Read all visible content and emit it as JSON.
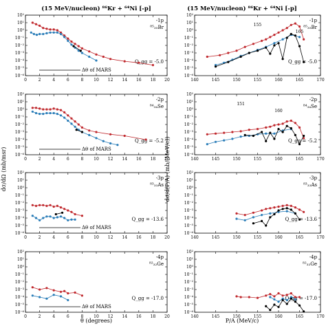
{
  "titles": {
    "left": "(15 MeV/nucleon) ⁸⁶Kr + ⁶⁴Ni [-p]",
    "right": "(15 MeV/nucleon) ⁸⁶Kr + ⁶⁴Ni [-p]"
  },
  "axis_labels": {
    "left_y": "dσ/dΩ (mb/msr)",
    "left_x": "θ (degrees)",
    "right_y": "dσ/d(P/A) (mb/(MeV/c))",
    "right_x": "P/A (MeV/c)"
  },
  "ytick_labels": [
    "10²",
    "10¹",
    "10⁰",
    "10⁻¹",
    "10⁻²",
    "10⁻³",
    "10⁻⁴",
    "10⁻⁵",
    "10⁻⁶"
  ],
  "colors": {
    "red": "#c0282d",
    "blue": "#2a7db8",
    "black": "#000000"
  },
  "chart_data": [
    {
      "type": "scatter",
      "panel": "left-1",
      "xlim": [
        0,
        20
      ],
      "ylim_log10": [
        -6,
        2
      ],
      "yscale": "log",
      "x_ticks": [
        0,
        2,
        4,
        6,
        8,
        10,
        12,
        14,
        16,
        18,
        20
      ],
      "channel": "-1p",
      "nucleus": "⁸⁵₃₅Br",
      "q_gg": "Q_gg = -5.0",
      "mars_label": "Δθ of MARS",
      "series": [
        {
          "color": "red",
          "x": [
            1,
            1.5,
            2,
            2.5,
            3,
            3.5,
            4,
            4.5,
            5,
            5.5,
            6,
            6.5,
            7,
            7.5,
            8,
            9,
            10,
            11,
            12,
            14,
            16,
            18
          ],
          "log10y": [
            1.0,
            0.8,
            0.6,
            0.3,
            0.2,
            0.1,
            0.1,
            0.0,
            -0.3,
            -0.7,
            -1.1,
            -1.5,
            -1.8,
            -2.1,
            -2.4,
            -2.8,
            -3.2,
            -3.5,
            -3.8,
            -4.1,
            -4.3,
            -4.6
          ]
        },
        {
          "color": "blue",
          "x": [
            0.8,
            1.2,
            1.6,
            2,
            2.5,
            3,
            3.5,
            4,
            4.5,
            5,
            5.5,
            6,
            6.5,
            7,
            7.5,
            8,
            9,
            10
          ],
          "log10y": [
            -0.3,
            -0.5,
            -0.6,
            -0.5,
            -0.5,
            -0.4,
            -0.3,
            -0.3,
            -0.3,
            -0.5,
            -0.9,
            -1.4,
            -1.9,
            -2.3,
            -2.7,
            -3.0,
            -3.5,
            -4.0
          ]
        },
        {
          "color": "black",
          "x": [
            6.8,
            7.8
          ],
          "log10y": [
            -2.1,
            -2.7
          ]
        }
      ]
    },
    {
      "type": "scatter",
      "panel": "left-2",
      "xlim": [
        0,
        20
      ],
      "ylim_log10": [
        -6,
        2
      ],
      "yscale": "log",
      "x_ticks": [
        0,
        2,
        4,
        6,
        8,
        10,
        12,
        14,
        16,
        18,
        20
      ],
      "channel": "-2p",
      "nucleus": "⁸⁴₃₄Se",
      "q_gg": "Q_gg = -5.2",
      "mars_label": "Δθ of MARS",
      "series": [
        {
          "color": "red",
          "x": [
            1,
            1.5,
            2,
            2.5,
            3,
            3.5,
            4,
            4.5,
            5,
            5.5,
            6,
            6.5,
            7,
            7.5,
            8,
            9,
            10,
            12,
            14,
            17
          ],
          "log10y": [
            0.2,
            0.2,
            0.1,
            0.0,
            0.0,
            0.0,
            0.1,
            0.0,
            -0.1,
            -0.4,
            -0.8,
            -1.2,
            -1.6,
            -2.0,
            -2.4,
            -2.8,
            -3.0,
            -3.3,
            -3.5,
            -4.0
          ]
        },
        {
          "color": "blue",
          "x": [
            1,
            1.5,
            2,
            2.5,
            3,
            3.5,
            4,
            4.5,
            5,
            5.5,
            6,
            6.5,
            7,
            7.5,
            8,
            9,
            10,
            11,
            12,
            13
          ],
          "log10y": [
            -0.3,
            -0.5,
            -0.6,
            -0.6,
            -0.5,
            -0.5,
            -0.5,
            -0.6,
            -0.8,
            -1.1,
            -1.5,
            -1.9,
            -2.3,
            -2.7,
            -3.0,
            -3.4,
            -3.8,
            -4.2,
            -4.5,
            -4.7
          ]
        },
        {
          "color": "black",
          "x": [
            7.2,
            8.0
          ],
          "log10y": [
            -2.7,
            -3.0
          ]
        }
      ]
    },
    {
      "type": "scatter",
      "panel": "left-3",
      "xlim": [
        0,
        20
      ],
      "ylim_log10": [
        -6,
        2
      ],
      "yscale": "log",
      "x_ticks": [
        0,
        2,
        4,
        6,
        8,
        10,
        12,
        14,
        16,
        18,
        20
      ],
      "channel": "-3p",
      "nucleus": "⁸³₃₃As",
      "q_gg": "Q_gg = -13.6",
      "mars_label": "Δθ of MARS",
      "series": [
        {
          "color": "red",
          "x": [
            1,
            1.5,
            2,
            2.5,
            3,
            3.5,
            4,
            4.5,
            5,
            5.5,
            6,
            6.5,
            7,
            8
          ],
          "log10y": [
            -2.3,
            -2.4,
            -2.3,
            -2.3,
            -2.4,
            -2.3,
            -2.5,
            -2.4,
            -2.6,
            -2.8,
            -3.0,
            -3.2,
            -3.5,
            -3.7
          ]
        },
        {
          "color": "blue",
          "x": [
            1,
            1.5,
            2,
            2.5,
            3,
            3.5,
            4,
            4.5,
            5,
            5.5,
            6,
            6.5,
            7
          ],
          "log10y": [
            -3.7,
            -4.0,
            -4.3,
            -4.0,
            -3.8,
            -3.8,
            -4.0,
            -3.9,
            -3.8,
            -4.0,
            -4.3,
            -4.2,
            -4.2
          ]
        },
        {
          "color": "black",
          "x": [
            4.3,
            5.2
          ],
          "log10y": [
            -3.5,
            -3.3
          ]
        }
      ]
    },
    {
      "type": "scatter",
      "panel": "left-4",
      "xlim": [
        0,
        20
      ],
      "ylim_log10": [
        -6,
        2
      ],
      "yscale": "log",
      "x_ticks": [
        0,
        2,
        4,
        6,
        8,
        10,
        12,
        14,
        16,
        18,
        20
      ],
      "channel": "-4p",
      "nucleus": "⁸²₃₂Ge",
      "q_gg": "Q_gg = -17.0",
      "mars_label": "Δθ of MARS",
      "series": [
        {
          "color": "red",
          "x": [
            1,
            2,
            3,
            4,
            5,
            5.5,
            6,
            7,
            8
          ],
          "log10y": [
            -2.7,
            -3.0,
            -2.8,
            -3.1,
            -3.3,
            -3.2,
            -3.5,
            -3.4,
            -3.8
          ]
        },
        {
          "color": "blue",
          "x": [
            1,
            2,
            3,
            4,
            5,
            6
          ],
          "log10y": [
            -3.8,
            -4.0,
            -4.2,
            -3.7,
            -3.9,
            -4.4
          ]
        }
      ]
    },
    {
      "type": "scatter",
      "panel": "right-1",
      "xlim": [
        140,
        170
      ],
      "ylim_log10": [
        -6,
        2
      ],
      "yscale": "log",
      "x_ticks": [
        140,
        145,
        150,
        155,
        160,
        165,
        170
      ],
      "channel": "-1p",
      "nucleus": "⁸⁵₃₅Br",
      "q_gg": "Q_gg = -5.0",
      "markers": [
        "155",
        "165"
      ],
      "series": [
        {
          "color": "red",
          "x": [
            143,
            146,
            148,
            150,
            152,
            154,
            156,
            157,
            158,
            159,
            160,
            161,
            162,
            163,
            164,
            165,
            166
          ],
          "log10y": [
            -3.5,
            -3.3,
            -3.0,
            -2.7,
            -2.2,
            -1.8,
            -1.4,
            -1.2,
            -0.9,
            -0.6,
            -0.3,
            0.0,
            0.3,
            0.7,
            0.9,
            0.5,
            -1.2
          ]
        },
        {
          "color": "blue",
          "x": [
            145,
            147,
            149,
            151,
            153,
            155,
            157,
            159,
            161,
            163,
            165
          ],
          "log10y": [
            -4.6,
            -4.3,
            -3.9,
            -3.4,
            -3.0,
            -2.6,
            -2.2,
            -1.7,
            -1.2,
            -0.6,
            -0.9
          ]
        },
        {
          "color": "black",
          "x": [
            145,
            148,
            151,
            153,
            155,
            157,
            158,
            159,
            160,
            161,
            162,
            163,
            164,
            165,
            166
          ],
          "log10y": [
            -4.8,
            -4.2,
            -3.5,
            -3.0,
            -2.7,
            -2.3,
            -3.1,
            -2.0,
            -1.7,
            -3.8,
            -1.0,
            -0.5,
            -0.7,
            -2.1,
            -4.2
          ]
        }
      ]
    },
    {
      "type": "scatter",
      "panel": "right-2",
      "xlim": [
        140,
        170
      ],
      "ylim_log10": [
        -6,
        2
      ],
      "yscale": "log",
      "x_ticks": [
        140,
        145,
        150,
        155,
        160,
        165,
        170
      ],
      "channel": "-2p",
      "nucleus": "⁸⁴₃₄Se",
      "q_gg": "Q_gg = -5.2",
      "markers": [
        "151",
        "160"
      ],
      "series": [
        {
          "color": "red",
          "x": [
            143,
            145,
            147,
            149,
            151,
            153,
            155,
            157,
            158,
            159,
            160,
            161,
            162,
            163,
            164,
            165,
            166
          ],
          "log10y": [
            -3.3,
            -3.2,
            -3.1,
            -3.0,
            -2.9,
            -2.7,
            -2.6,
            -2.4,
            -2.3,
            -2.1,
            -2.0,
            -1.9,
            -1.6,
            -1.5,
            -1.8,
            -2.4,
            -3.8
          ]
        },
        {
          "color": "blue",
          "x": [
            143,
            145,
            147,
            149,
            151,
            153,
            155,
            157,
            159,
            161,
            163
          ],
          "log10y": [
            -4.6,
            -4.3,
            -4.1,
            -3.9,
            -3.6,
            -3.5,
            -3.3,
            -3.2,
            -3.2,
            -2.8,
            -2.6
          ]
        },
        {
          "color": "black",
          "x": [
            152,
            154,
            156,
            157,
            158,
            159,
            160,
            161,
            162,
            163,
            164,
            165,
            166
          ],
          "log10y": [
            -3.4,
            -3.5,
            -3.0,
            -4.2,
            -3.1,
            -3.9,
            -2.6,
            -3.0,
            -2.2,
            -2.5,
            -3.4,
            -4.6,
            -3.5
          ]
        }
      ]
    },
    {
      "type": "scatter",
      "panel": "right-3",
      "xlim": [
        140,
        170
      ],
      "ylim_log10": [
        -6,
        2
      ],
      "yscale": "log",
      "x_ticks": [
        140,
        145,
        150,
        155,
        160,
        165,
        170
      ],
      "channel": "-3p",
      "nucleus": "⁸³₃₃As",
      "q_gg": "Q_gg = -13.6",
      "series": [
        {
          "color": "red",
          "x": [
            150,
            152,
            154,
            156,
            157,
            158,
            159,
            160,
            161,
            162,
            163,
            164,
            165,
            166
          ],
          "log10y": [
            -3.4,
            -3.6,
            -3.3,
            -3.0,
            -2.8,
            -2.7,
            -2.6,
            -2.5,
            -2.4,
            -2.3,
            -2.4,
            -2.6,
            -2.9,
            -3.2
          ]
        },
        {
          "color": "blue",
          "x": [
            150,
            152,
            154,
            156,
            158,
            160,
            162,
            164
          ],
          "log10y": [
            -4.1,
            -4.3,
            -3.9,
            -3.6,
            -3.4,
            -3.2,
            -3.1,
            -3.4
          ]
        },
        {
          "color": "black",
          "x": [
            154,
            156,
            157,
            158,
            159,
            160,
            161,
            162,
            163,
            164,
            165
          ],
          "log10y": [
            -4.7,
            -4.4,
            -5.0,
            -3.9,
            -3.5,
            -3.0,
            -2.8,
            -2.7,
            -2.9,
            -3.4,
            -4.2
          ]
        }
      ]
    },
    {
      "type": "scatter",
      "panel": "right-4",
      "xlim": [
        140,
        170
      ],
      "ylim_log10": [
        -6,
        2
      ],
      "yscale": "log",
      "x_ticks": [
        140,
        145,
        150,
        155,
        160,
        165,
        170
      ],
      "channel": "-4p",
      "nucleus": "⁸²₃₂Ge",
      "q_gg": "Q_gg = -17.0",
      "series": [
        {
          "color": "red",
          "x": [
            150,
            151,
            153,
            155,
            157,
            158,
            159,
            160,
            161,
            162,
            163,
            164,
            165
          ],
          "log10y": [
            -3.9,
            -4.0,
            -4.0,
            -4.1,
            -3.8,
            -3.6,
            -3.9,
            -3.5,
            -3.8,
            -3.7,
            -3.5,
            -4.0,
            -4.0
          ]
        },
        {
          "color": "blue",
          "x": [
            158,
            159,
            160,
            161,
            162,
            163,
            164
          ],
          "log10y": [
            -4.0,
            -4.3,
            -4.6,
            -4.2,
            -4.4,
            -4.0,
            -4.3
          ]
        },
        {
          "color": "black",
          "x": [
            156,
            157,
            158,
            159,
            160,
            161,
            162,
            163,
            164,
            165,
            166
          ],
          "log10y": [
            -6.1,
            -5.2,
            -5.7,
            -5.0,
            -5.3,
            -4.4,
            -4.9,
            -4.2,
            -4.6,
            -5.1,
            -5.9
          ]
        }
      ]
    }
  ]
}
